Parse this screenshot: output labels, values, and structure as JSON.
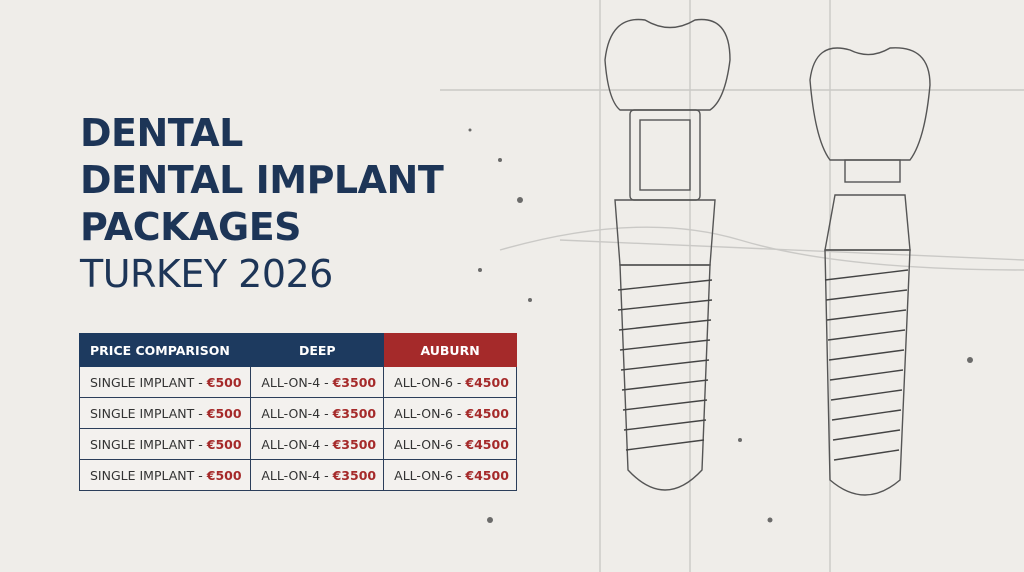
{
  "title": {
    "line1": "DENTAL",
    "line2": "DENTAL IMPLANT",
    "line3": "PACKAGES",
    "line4": "TURKEY 2026"
  },
  "table": {
    "headers": [
      "PRICE COMPARISON",
      "DEEP",
      "AUBURN"
    ],
    "rows": [
      [
        {
          "label": "SINGLE IMPLANT - ",
          "price": "€500"
        },
        {
          "label": "ALL-ON-4 - ",
          "price": "€3500"
        },
        {
          "label": "ALL-ON-6 - ",
          "price": "€4500"
        }
      ],
      [
        {
          "label": "SINGLE IMPLANT - ",
          "price": "€500"
        },
        {
          "label": "ALL-ON-4 - ",
          "price": "€3500"
        },
        {
          "label": "ALL-ON-6 - ",
          "price": "€4500"
        }
      ],
      [
        {
          "label": "SINGLE IMPLANT - ",
          "price": "€500"
        },
        {
          "label": "ALL-ON-4 - ",
          "price": "€3500"
        },
        {
          "label": "ALL-ON-6 - ",
          "price": "€4500"
        }
      ],
      [
        {
          "label": "SINGLE IMPLANT - ",
          "price": "€500"
        },
        {
          "label": "ALL-ON-4 - ",
          "price": "€3500"
        },
        {
          "label": "ALL-ON-6 - ",
          "price": "€4500"
        }
      ]
    ]
  },
  "colors": {
    "navy": "#1d3a5f",
    "red": "#a52a2a",
    "background": "#efede9"
  },
  "illustration": "dental-implant-sketch"
}
